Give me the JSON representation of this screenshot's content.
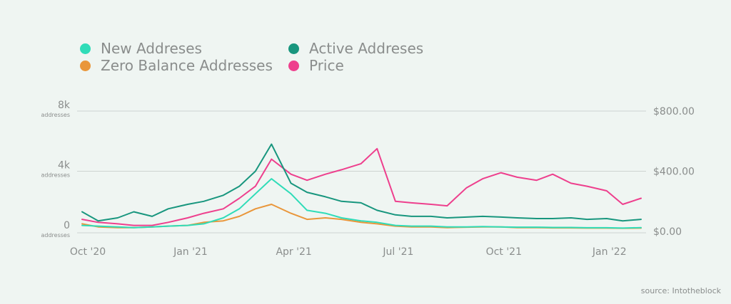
{
  "chart_data": {
    "type": "line",
    "x_tick_labels": [
      "Oct '20",
      "Jan '21",
      "Apr '21",
      "Jul '21",
      "Oct '21",
      "Jan '22"
    ],
    "y_left_ticks": [
      {
        "value": 8000,
        "label": "8k",
        "unit": "addresses"
      },
      {
        "value": 4000,
        "label": "4k",
        "unit": "addresses"
      },
      {
        "value": 0,
        "label": "0",
        "unit": "addresses"
      }
    ],
    "y_right_ticks": [
      {
        "value": 800,
        "label": "$800.00"
      },
      {
        "value": 400,
        "label": "$400.00"
      },
      {
        "value": 0,
        "label": "$0.00"
      }
    ],
    "ylim_left": [
      0,
      8000
    ],
    "ylim_right": [
      0,
      800
    ],
    "grid": true,
    "legend_position": "top-left",
    "x": [
      "2020-10-01",
      "2020-10-15",
      "2020-11-01",
      "2020-11-15",
      "2020-12-01",
      "2020-12-15",
      "2021-01-01",
      "2021-01-15",
      "2021-02-01",
      "2021-02-15",
      "2021-03-01",
      "2021-03-15",
      "2021-04-01",
      "2021-04-15",
      "2021-05-01",
      "2021-05-15",
      "2021-06-01",
      "2021-06-15",
      "2021-07-01",
      "2021-07-15",
      "2021-08-01",
      "2021-08-15",
      "2021-09-01",
      "2021-09-15",
      "2021-10-01",
      "2021-10-15",
      "2021-11-01",
      "2021-11-15",
      "2021-12-01",
      "2021-12-15",
      "2022-01-01",
      "2022-01-15",
      "2022-01-31"
    ],
    "series": [
      {
        "name": "New Addreses",
        "color": "#2fdcb8",
        "axis": "left",
        "values": [
          400,
          350,
          300,
          250,
          300,
          350,
          400,
          500,
          900,
          1500,
          2500,
          3500,
          2500,
          1400,
          1200,
          900,
          700,
          600,
          400,
          350,
          350,
          300,
          300,
          320,
          300,
          280,
          280,
          260,
          260,
          240,
          240,
          220,
          250
        ]
      },
      {
        "name": "Active Addreses",
        "color": "#18967e",
        "axis": "left",
        "values": [
          1300,
          700,
          900,
          1300,
          1000,
          1500,
          1800,
          2000,
          2400,
          3000,
          4000,
          5800,
          3200,
          2600,
          2300,
          2000,
          1900,
          1400,
          1100,
          1000,
          1000,
          900,
          950,
          1000,
          950,
          900,
          850,
          850,
          900,
          800,
          850,
          700,
          800
        ]
      },
      {
        "name": "Zero Balance Addresses",
        "color": "#e9963a",
        "axis": "left",
        "values": [
          500,
          300,
          250,
          250,
          300,
          350,
          400,
          600,
          700,
          1000,
          1500,
          1800,
          1200,
          800,
          900,
          800,
          600,
          500,
          350,
          300,
          300,
          250,
          280,
          300,
          300,
          250,
          250,
          230,
          230,
          220,
          220,
          210,
          220
        ]
      },
      {
        "name": "Price",
        "color": "#ee3f8d",
        "axis": "right",
        "values": [
          80,
          60,
          50,
          40,
          40,
          60,
          90,
          120,
          150,
          220,
          300,
          480,
          380,
          340,
          380,
          410,
          450,
          550,
          200,
          190,
          180,
          170,
          290,
          350,
          390,
          360,
          340,
          380,
          320,
          300,
          270,
          180,
          220
        ]
      }
    ]
  },
  "source": "source: Intotheblock"
}
